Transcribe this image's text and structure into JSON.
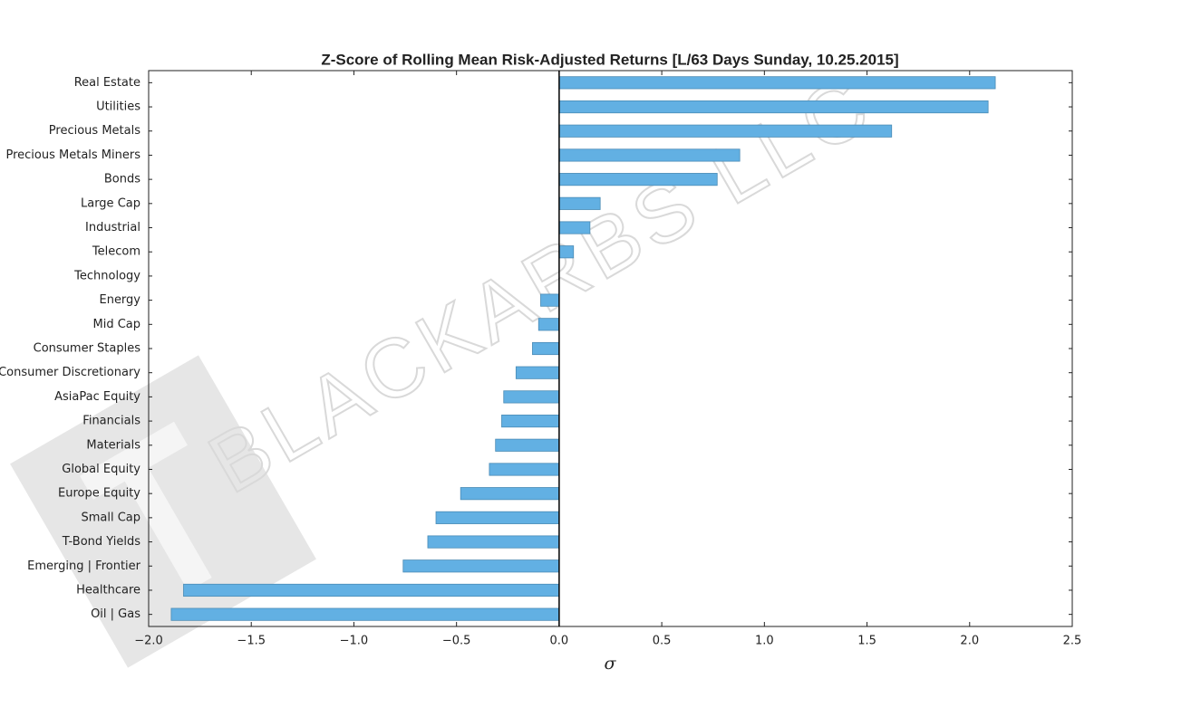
{
  "watermark": "BLACKARBS LLC",
  "chart_data": {
    "type": "barh",
    "title": "Z-Score of Rolling Mean Risk-Adjusted Returns [L/63 Days Sunday, 10.25.2015]",
    "xlabel": "σ",
    "categories": [
      "Real Estate",
      "Utilities",
      "Precious Metals",
      "Precious Metals Miners",
      "Bonds",
      "Large Cap",
      "Industrial",
      "Telecom",
      "Technology",
      "Energy",
      "Mid Cap",
      "Consumer Staples",
      "Consumer Discretionary",
      "AsiaPac Equity",
      "Financials",
      "Materials",
      "Global Equity",
      "Europe Equity",
      "Small Cap",
      "T-Bond Yields",
      "Emerging | Frontier",
      "Healthcare",
      "Oil | Gas"
    ],
    "values": [
      2.125,
      2.09,
      1.62,
      0.88,
      0.77,
      0.2,
      0.15,
      0.07,
      0,
      -0.09,
      -0.1,
      -0.13,
      -0.21,
      -0.27,
      -0.28,
      -0.31,
      -0.34,
      -0.48,
      -0.6,
      -0.64,
      -0.76,
      -1.83,
      -1.89
    ],
    "color": "#62b0e3",
    "xlim": [
      -2,
      2.5
    ],
    "xticks": [
      {
        "value": -2,
        "label": "−2.0"
      },
      {
        "value": -1.5,
        "label": "−1.5"
      },
      {
        "value": -1,
        "label": "−1.0"
      },
      {
        "value": -0.5,
        "label": "−0.5"
      },
      {
        "value": 0,
        "label": "0.0"
      },
      0.5,
      {
        "value": 1,
        "label": "1.0"
      },
      1.5,
      {
        "value": 2,
        "label": "2.0"
      },
      2.5
    ]
  }
}
